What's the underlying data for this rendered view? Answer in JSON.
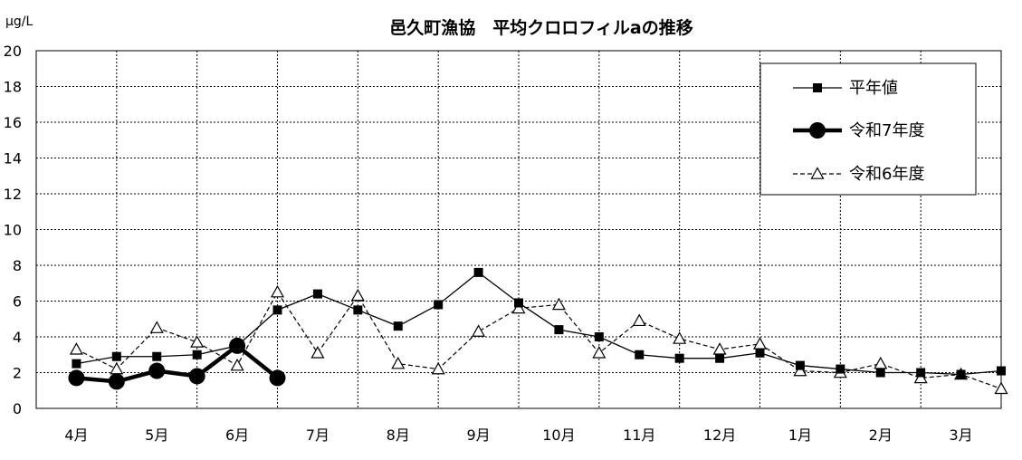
{
  "chart_data": {
    "type": "line",
    "title": "邑久町漁協　平均クロロフィルaの推移",
    "unit_label": "μg/L",
    "xlabel": "",
    "ylabel": "",
    "ylim": [
      0,
      20
    ],
    "yticks": [
      0,
      2,
      4,
      6,
      8,
      10,
      12,
      14,
      16,
      18,
      20
    ],
    "grid": true,
    "legend_position": "top-right",
    "month_labels": [
      "4月",
      "5月",
      "6月",
      "7月",
      "8月",
      "9月",
      "10月",
      "11月",
      "12月",
      "1月",
      "2月",
      "3月"
    ],
    "series": [
      {
        "name": "平年値",
        "style": "solid-thin",
        "marker": "square",
        "color": "#000000",
        "x": [
          0.0,
          0.5,
          1.0,
          1.5,
          2.0,
          2.5,
          3.0,
          3.5,
          4.0,
          4.5,
          5.0,
          5.5,
          6.0,
          6.5,
          7.0,
          7.5,
          8.0,
          8.5,
          9.0,
          9.5,
          10.0,
          10.5,
          11.0,
          11.5
        ],
        "values": [
          2.5,
          2.9,
          2.9,
          3.0,
          3.5,
          5.5,
          6.4,
          5.5,
          4.6,
          5.8,
          7.6,
          5.9,
          4.4,
          4.0,
          3.0,
          2.8,
          2.8,
          3.1,
          2.4,
          2.2,
          2.0,
          2.0,
          1.9,
          2.1
        ]
      },
      {
        "name": "令和7年度",
        "style": "solid-thick",
        "marker": "circle",
        "color": "#000000",
        "x": [
          0.0,
          0.5,
          1.0,
          1.5,
          2.0,
          2.5
        ],
        "values": [
          1.7,
          1.5,
          2.1,
          1.8,
          3.5,
          1.7
        ]
      },
      {
        "name": "令和6年度",
        "style": "dashed",
        "marker": "triangle-open",
        "color": "#000000",
        "x": [
          0.0,
          0.5,
          1.0,
          1.5,
          2.0,
          2.5,
          3.0,
          3.5,
          4.0,
          4.5,
          5.0,
          5.5,
          6.0,
          6.5,
          7.0,
          7.5,
          8.0,
          8.5,
          9.0,
          9.5,
          10.0,
          10.5,
          11.0,
          11.5
        ],
        "values": [
          3.3,
          2.2,
          4.5,
          3.7,
          2.4,
          6.5,
          3.1,
          6.3,
          2.5,
          2.2,
          4.3,
          5.6,
          5.8,
          3.1,
          4.9,
          3.9,
          3.3,
          3.6,
          2.1,
          2.0,
          2.5,
          1.7,
          1.9,
          1.1
        ]
      }
    ]
  }
}
